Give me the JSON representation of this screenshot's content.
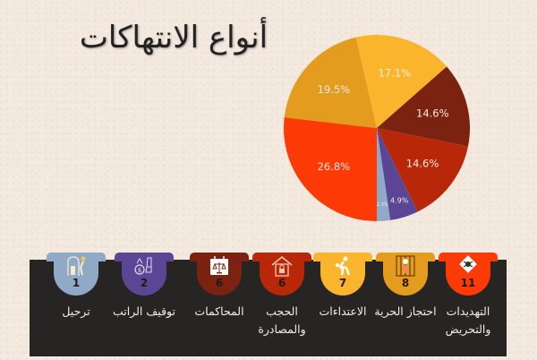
{
  "title": "أنواع الانتهاكات",
  "chart_data": {
    "type": "pie",
    "title": "أنواع الانتهاكات",
    "start_angle_deg": -13,
    "direction": "clockwise",
    "slices": [
      {
        "category": "الاعتداءات",
        "count": 7,
        "label": "17.1%",
        "value": 17.1,
        "color": "#fbb52c"
      },
      {
        "category": "المحاكمات",
        "count": 6,
        "label": "14.6%",
        "value": 14.6,
        "color": "#7b2211"
      },
      {
        "category": "الحجب والمصادرة",
        "count": 6,
        "label": "14.6%",
        "value": 14.6,
        "color": "#b82808"
      },
      {
        "category": "توقيف الراتب",
        "count": 2,
        "label": "4.9%",
        "value": 4.9,
        "color": "#5b4595"
      },
      {
        "category": "ترحيل",
        "count": 1,
        "label": "2.3%",
        "value": 2.3,
        "color": "#8fa9c6"
      },
      {
        "category": "التهديدات والتحريض",
        "count": 11,
        "label": "26.8%",
        "value": 26.8,
        "color": "#fb3a06"
      },
      {
        "category": "احتجاز الحرية",
        "count": 8,
        "label": "19.5%",
        "value": 19.5,
        "color": "#e39c1d"
      }
    ]
  },
  "categories": [
    {
      "id": "threats",
      "label": "التهديدات والتحريض",
      "count": "11",
      "color": "#fb3a06",
      "icon": "hazard-icon"
    },
    {
      "id": "detention",
      "label": "احتجاز الحرية",
      "count": "8",
      "color": "#e39c1d",
      "icon": "prison-icon"
    },
    {
      "id": "assaults",
      "label": "الاعتداءات",
      "count": "7",
      "color": "#fbb52c",
      "icon": "assault-icon"
    },
    {
      "id": "confiscation",
      "label": "الحجب والمصادرة",
      "count": "6",
      "color": "#b82808",
      "icon": "locked-house-icon"
    },
    {
      "id": "trials",
      "label": "المحاكمات",
      "count": "6",
      "color": "#7b2211",
      "icon": "scales-calendar-icon"
    },
    {
      "id": "salary",
      "label": "توقيف الراتب",
      "count": "2",
      "color": "#5b4595",
      "icon": "money-bag-icon"
    },
    {
      "id": "deport",
      "label": "ترحيل",
      "count": "1",
      "color": "#8fa9c6",
      "icon": "deportation-icon"
    }
  ]
}
